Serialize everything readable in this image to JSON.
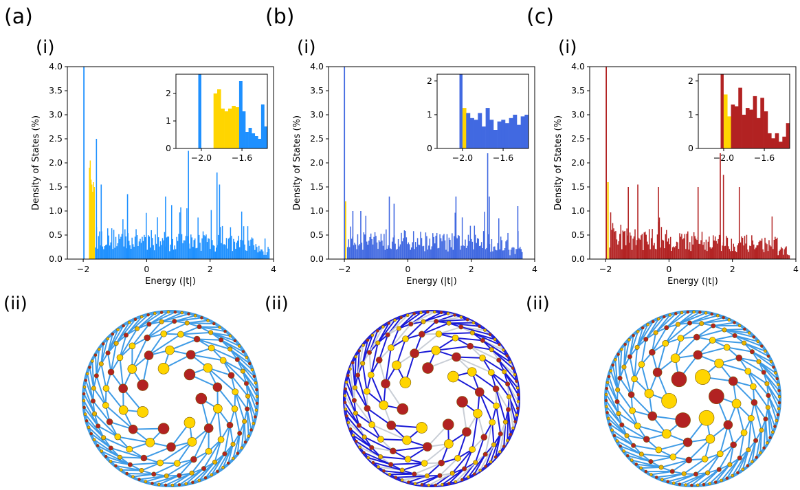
{
  "figure": {
    "panels": [
      {
        "label": "(a)",
        "sub_top": "(i)",
        "sub_bottom": "(ii)",
        "color": "#1e90ff",
        "edge_color": "#3f9be6",
        "secondary_edge_color": "",
        "highlight": "#ffd500"
      },
      {
        "label": "(b)",
        "sub_top": "(i)",
        "sub_bottom": "(ii)",
        "color": "#4169e1",
        "edge_color": "#1a1ad6",
        "secondary_edge_color": "#c9ced6",
        "highlight": "#ffd500"
      },
      {
        "label": "(c)",
        "sub_top": "(i)",
        "sub_bottom": "(ii)",
        "color": "#b22222",
        "edge_color": "#3f9be6",
        "secondary_edge_color": "",
        "highlight": "#ffd500"
      }
    ],
    "node_colors": {
      "large": "#b22222",
      "medium": "#ffd500",
      "small": "#e8b400"
    }
  },
  "chart_data": [
    {
      "type": "bar",
      "xlabel": "Energy (|t|)",
      "ylabel": "Density of States (%)",
      "xlim": [
        -2.5,
        4
      ],
      "ylim": [
        0,
        4
      ],
      "xticks": [
        "-2",
        "0",
        "2",
        "4"
      ],
      "yticks": [
        "0.0",
        "0.5",
        "1.0",
        "1.5",
        "2.0",
        "2.5",
        "3.0",
        "3.5",
        "4.0"
      ],
      "spike": {
        "x": -1.98,
        "value": 4.0
      },
      "highlight_range": [
        -1.82,
        -1.64
      ],
      "highlight_values": [
        1.9,
        2.05,
        1.65,
        1.55,
        1.4,
        1.6,
        1.5
      ],
      "peaks": [
        {
          "x": -1.6,
          "value": 2.5
        },
        {
          "x": -1.45,
          "value": 1.55
        },
        {
          "x": -0.62,
          "value": 1.35
        },
        {
          "x": 0.58,
          "value": 1.3
        },
        {
          "x": 1.3,
          "value": 2.25
        },
        {
          "x": 2.2,
          "value": 1.8
        },
        {
          "x": 2.28,
          "value": 1.55
        }
      ],
      "background_level": 0.55,
      "end": 3.85,
      "inset": {
        "xticks": [
          "-2.0",
          "-1.6"
        ],
        "yticks": [
          "0",
          "1",
          "2"
        ],
        "xlim": [
          -2.25,
          -1.35
        ],
        "ylim": [
          0,
          2.7
        ],
        "spike_x": -2.0,
        "highlight_values": [
          2.0,
          2.15,
          1.45,
          1.35,
          1.45,
          1.55,
          1.5
        ],
        "tail_values": [
          2.45,
          1.35,
          0.6,
          0.75,
          0.55,
          0.45,
          0.35,
          1.6,
          0.8
        ]
      }
    },
    {
      "type": "bar",
      "xlabel": "Energy (|t|)",
      "ylabel": "Density of States (%)",
      "xlim": [
        -2.5,
        4
      ],
      "ylim": [
        0,
        4
      ],
      "xticks": [
        "-2",
        "0",
        "2",
        "4"
      ],
      "yticks": [
        "0.0",
        "0.5",
        "1.0",
        "1.5",
        "2.0",
        "2.5",
        "3.0",
        "3.5",
        "4.0"
      ],
      "spike": {
        "x": -2.0,
        "value": 4.0
      },
      "highlight_range": [
        -1.98,
        -1.94
      ],
      "highlight_values": [
        1.2
      ],
      "peaks": [
        {
          "x": -1.75,
          "value": 1.0
        },
        {
          "x": -1.5,
          "value": 1.0
        },
        {
          "x": -0.6,
          "value": 1.3
        },
        {
          "x": -0.45,
          "value": 1.15
        },
        {
          "x": 1.5,
          "value": 1.3
        },
        {
          "x": 2.5,
          "value": 2.2
        },
        {
          "x": 2.55,
          "value": 1.3
        },
        {
          "x": 3.45,
          "value": 1.1
        }
      ],
      "background_level": 0.55,
      "end": 3.6,
      "inset": {
        "xticks": [
          "-2.0",
          "-1.6"
        ],
        "yticks": [
          "0",
          "1",
          "2"
        ],
        "xlim": [
          -2.25,
          -1.35
        ],
        "ylim": [
          0,
          2.2
        ],
        "spike_x": -2.0,
        "highlight_values": [
          1.2
        ],
        "tail_values": [
          1.05,
          0.9,
          0.85,
          1.05,
          0.65,
          1.2,
          0.85,
          0.55,
          0.8,
          0.85,
          0.75,
          0.9,
          1.0,
          0.7,
          0.95,
          1.0
        ]
      }
    },
    {
      "type": "bar",
      "xlabel": "Energy (|t|)",
      "ylabel": "Density of States (%)",
      "xlim": [
        -2.5,
        4
      ],
      "ylim": [
        0,
        4
      ],
      "xticks": [
        "-2",
        "0",
        "2",
        "4"
      ],
      "yticks": [
        "0.0",
        "0.5",
        "1.0",
        "1.5",
        "2.0",
        "2.5",
        "3.0",
        "3.5",
        "4.0"
      ],
      "spike": {
        "x": -1.98,
        "value": 4.0
      },
      "highlight_range": [
        -1.95,
        -1.9
      ],
      "highlight_values": [
        1.6
      ],
      "peaks": [
        {
          "x": -1.3,
          "value": 1.5
        },
        {
          "x": -1.0,
          "value": 1.55
        },
        {
          "x": -0.35,
          "value": 1.5
        },
        {
          "x": 0.9,
          "value": 1.5
        },
        {
          "x": 1.6,
          "value": 2.2
        },
        {
          "x": 1.7,
          "value": 1.75
        },
        {
          "x": 2.2,
          "value": 1.5
        }
      ],
      "background_level": 0.55,
      "end": 3.8,
      "inset": {
        "xticks": [
          "-2.0",
          "-1.6"
        ],
        "yticks": [
          "0",
          "1",
          "2"
        ],
        "xlim": [
          -2.25,
          -1.35
        ],
        "ylim": [
          0,
          2.2
        ],
        "spike_x": -2.0,
        "highlight_values": [
          1.6,
          0.95
        ],
        "tail_values": [
          1.3,
          1.25,
          1.8,
          1.0,
          1.2,
          1.15,
          1.55,
          0.9,
          1.5,
          1.1,
          0.45,
          0.3,
          0.45,
          0.2,
          0.35,
          0.75
        ]
      }
    }
  ]
}
